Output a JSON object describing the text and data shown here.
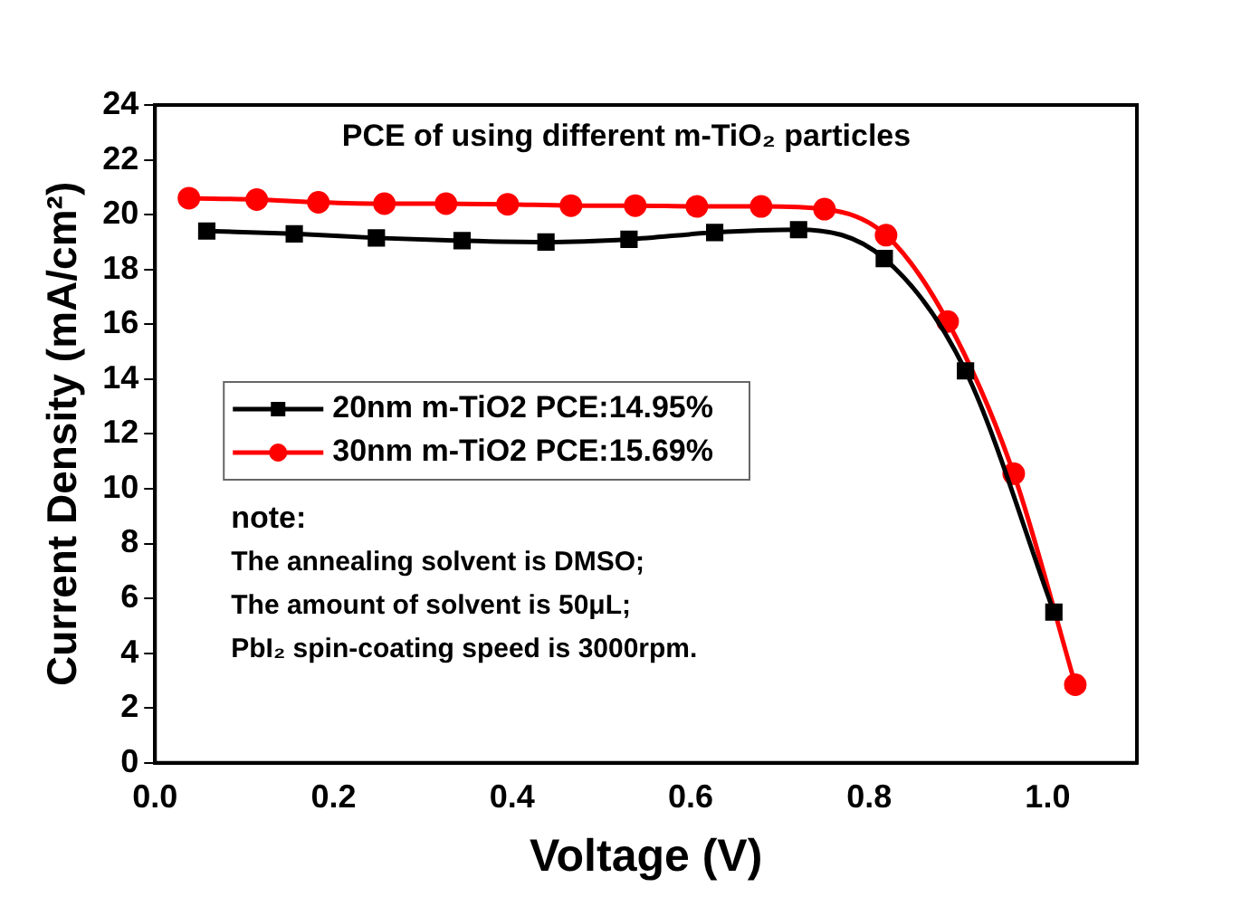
{
  "chart_data": {
    "type": "line",
    "title": "PCE of using different m-TiO₂ particles",
    "xlabel": "Voltage (V)",
    "ylabel": "Current Density (mA/cm²)",
    "xlim": [
      0,
      1.1
    ],
    "xticks": [
      {
        "value": 0,
        "label": "0.0"
      },
      {
        "value": 0.2,
        "label": "0.2"
      },
      {
        "value": 0.4,
        "label": "0.4"
      },
      {
        "value": 0.6,
        "label": "0.6"
      },
      {
        "value": 0.8,
        "label": "0.8"
      },
      {
        "value": 1,
        "label": "1.0"
      }
    ],
    "ylim": [
      0,
      24
    ],
    "yticks": [
      0,
      2,
      4,
      6,
      8,
      10,
      12,
      14,
      16,
      18,
      20,
      22,
      24
    ],
    "series": [
      {
        "name": "20nm m-TiO2 PCE:14.95%",
        "color": "#000000",
        "marker": "square",
        "x": [
          0.058,
          0.156,
          0.248,
          0.344,
          0.438,
          0.531,
          0.627,
          0.721,
          0.817,
          0.908,
          1.007
        ],
        "values": [
          19.4,
          19.3,
          19.15,
          19.05,
          19.0,
          19.1,
          19.35,
          19.45,
          18.4,
          14.3,
          5.5
        ]
      },
      {
        "name": "30nm m-TiO2 PCE:15.69%",
        "color": "#ff0000",
        "marker": "circle",
        "x": [
          0.038,
          0.114,
          0.183,
          0.257,
          0.326,
          0.395,
          0.466,
          0.538,
          0.607,
          0.679,
          0.75,
          0.819,
          0.888,
          0.962,
          1.031
        ],
        "values": [
          20.6,
          20.55,
          20.45,
          20.4,
          20.4,
          20.38,
          20.33,
          20.33,
          20.3,
          20.3,
          20.2,
          19.25,
          16.1,
          10.55,
          2.85
        ]
      }
    ],
    "legend": "left",
    "grid": false,
    "line_style": "solid",
    "annotations": [
      "note:",
      "The annealing solvent is DMSO;",
      "The amount of solvent is 50μL;",
      "PbI₂ spin-coating speed is 3000rpm."
    ]
  }
}
